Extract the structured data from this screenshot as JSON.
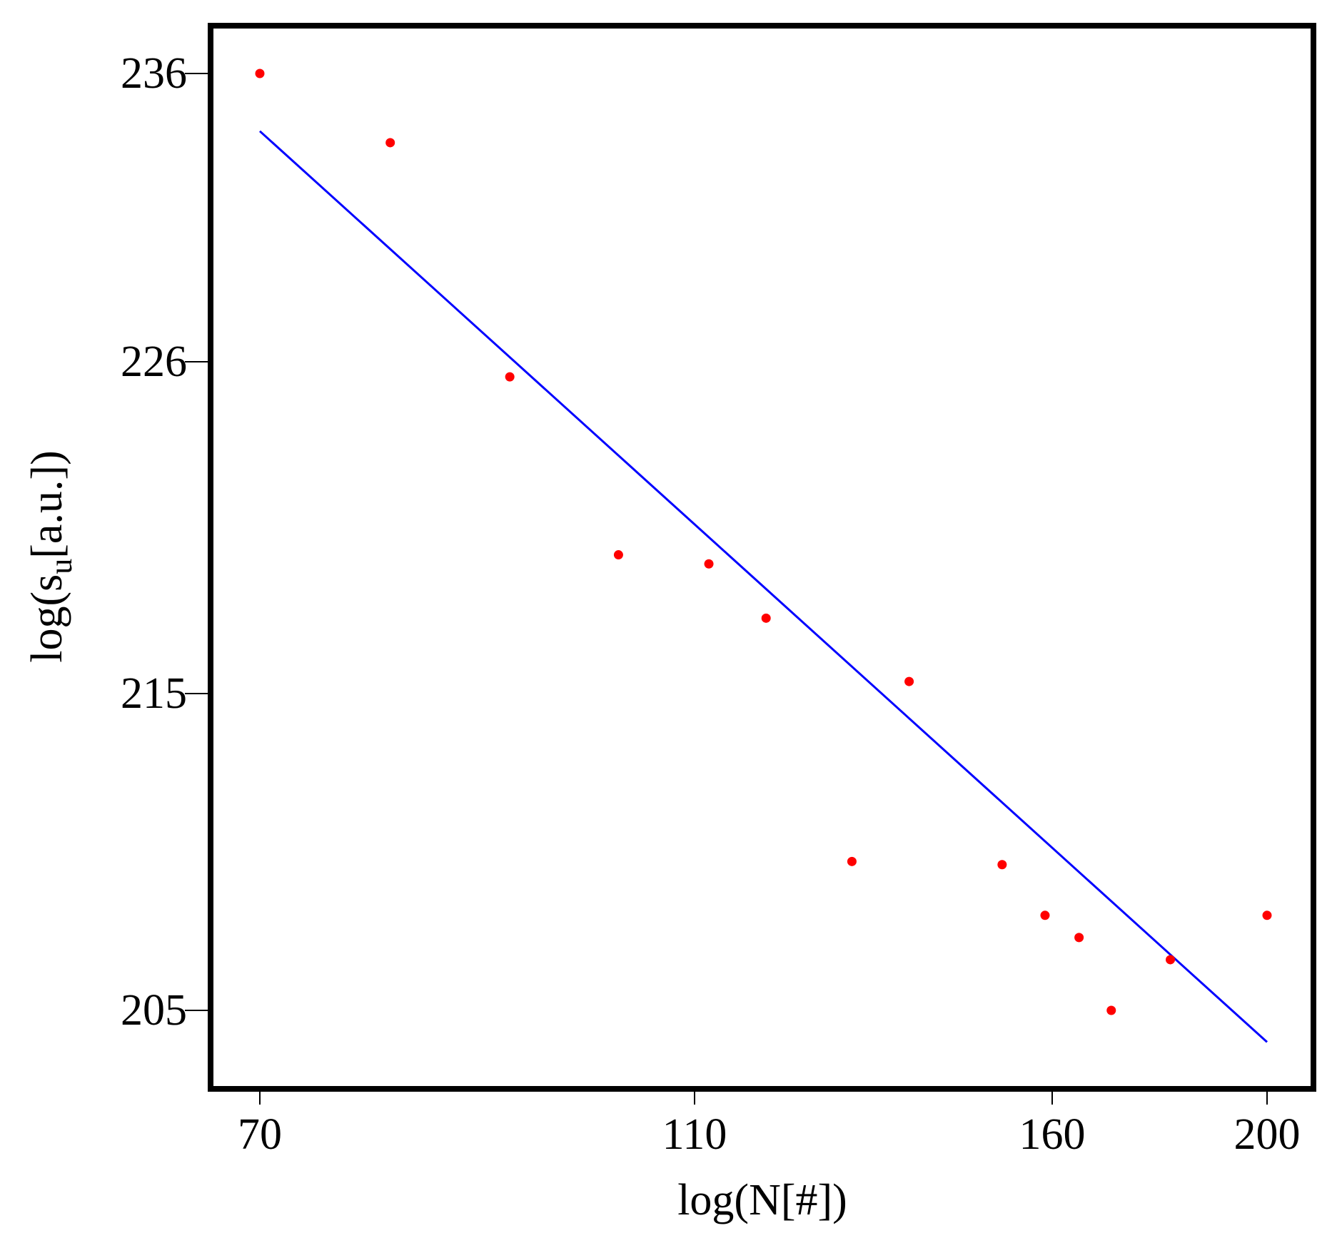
{
  "chart_data": {
    "type": "scatter",
    "title": "",
    "xlabel": "log(N[#])",
    "ylabel": {
      "prefix": "log(s",
      "subscript": "u",
      "suffix": "[a.u.])"
    },
    "x_ticks": [
      70,
      110,
      160,
      200
    ],
    "y_ticks": [
      205,
      215,
      226,
      236
    ],
    "grid": false,
    "legend": "none",
    "colors": {
      "points": "#ff0000",
      "fit_line": "#0000ff",
      "frame": "#000000"
    },
    "series": [
      {
        "kind": "points",
        "x": [
          70,
          82,
          93,
          103,
          112,
          120,
          132,
          140,
          153,
          159,
          165,
          171,
          182,
          200
        ],
        "y": [
          236.0,
          233.6,
          225.5,
          219.6,
          219.3,
          217.5,
          209.7,
          215.4,
          209.6,
          208.0,
          207.3,
          205.0,
          206.6,
          208.0
        ]
      },
      {
        "kind": "fit-line",
        "x": [
          70,
          200
        ],
        "y": [
          234.0,
          204.0
        ]
      }
    ]
  }
}
